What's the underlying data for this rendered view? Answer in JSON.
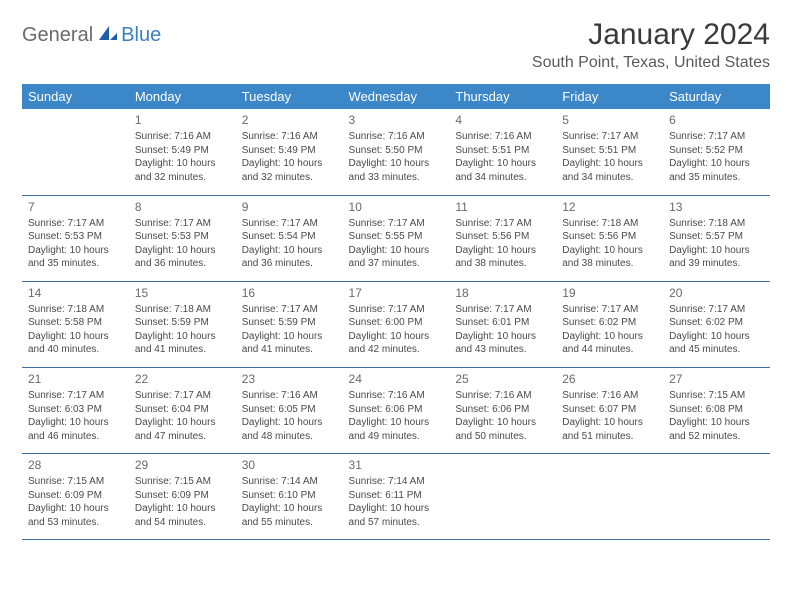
{
  "logo": {
    "text_main": "General",
    "text_accent": "Blue"
  },
  "title": {
    "month": "January 2024",
    "location": "South Point, Texas, United States"
  },
  "colors": {
    "header_bg": "#3b87c8",
    "header_text": "#ffffff",
    "row_border": "#3b6fa0",
    "body_text": "#4a4a4a",
    "daynum_text": "#6a6a6a",
    "logo_gray": "#6b6b6b",
    "logo_blue": "#3b7fc4",
    "title_color": "#3a3a3a",
    "location_color": "#5a5a5a",
    "page_bg": "#ffffff"
  },
  "weekdays": [
    "Sunday",
    "Monday",
    "Tuesday",
    "Wednesday",
    "Thursday",
    "Friday",
    "Saturday"
  ],
  "weeks": [
    [
      null,
      {
        "d": "1",
        "sunrise": "7:16 AM",
        "sunset": "5:49 PM",
        "daylight": "10 hours and 32 minutes."
      },
      {
        "d": "2",
        "sunrise": "7:16 AM",
        "sunset": "5:49 PM",
        "daylight": "10 hours and 32 minutes."
      },
      {
        "d": "3",
        "sunrise": "7:16 AM",
        "sunset": "5:50 PM",
        "daylight": "10 hours and 33 minutes."
      },
      {
        "d": "4",
        "sunrise": "7:16 AM",
        "sunset": "5:51 PM",
        "daylight": "10 hours and 34 minutes."
      },
      {
        "d": "5",
        "sunrise": "7:17 AM",
        "sunset": "5:51 PM",
        "daylight": "10 hours and 34 minutes."
      },
      {
        "d": "6",
        "sunrise": "7:17 AM",
        "sunset": "5:52 PM",
        "daylight": "10 hours and 35 minutes."
      }
    ],
    [
      {
        "d": "7",
        "sunrise": "7:17 AM",
        "sunset": "5:53 PM",
        "daylight": "10 hours and 35 minutes."
      },
      {
        "d": "8",
        "sunrise": "7:17 AM",
        "sunset": "5:53 PM",
        "daylight": "10 hours and 36 minutes."
      },
      {
        "d": "9",
        "sunrise": "7:17 AM",
        "sunset": "5:54 PM",
        "daylight": "10 hours and 36 minutes."
      },
      {
        "d": "10",
        "sunrise": "7:17 AM",
        "sunset": "5:55 PM",
        "daylight": "10 hours and 37 minutes."
      },
      {
        "d": "11",
        "sunrise": "7:17 AM",
        "sunset": "5:56 PM",
        "daylight": "10 hours and 38 minutes."
      },
      {
        "d": "12",
        "sunrise": "7:18 AM",
        "sunset": "5:56 PM",
        "daylight": "10 hours and 38 minutes."
      },
      {
        "d": "13",
        "sunrise": "7:18 AM",
        "sunset": "5:57 PM",
        "daylight": "10 hours and 39 minutes."
      }
    ],
    [
      {
        "d": "14",
        "sunrise": "7:18 AM",
        "sunset": "5:58 PM",
        "daylight": "10 hours and 40 minutes."
      },
      {
        "d": "15",
        "sunrise": "7:18 AM",
        "sunset": "5:59 PM",
        "daylight": "10 hours and 41 minutes."
      },
      {
        "d": "16",
        "sunrise": "7:17 AM",
        "sunset": "5:59 PM",
        "daylight": "10 hours and 41 minutes."
      },
      {
        "d": "17",
        "sunrise": "7:17 AM",
        "sunset": "6:00 PM",
        "daylight": "10 hours and 42 minutes."
      },
      {
        "d": "18",
        "sunrise": "7:17 AM",
        "sunset": "6:01 PM",
        "daylight": "10 hours and 43 minutes."
      },
      {
        "d": "19",
        "sunrise": "7:17 AM",
        "sunset": "6:02 PM",
        "daylight": "10 hours and 44 minutes."
      },
      {
        "d": "20",
        "sunrise": "7:17 AM",
        "sunset": "6:02 PM",
        "daylight": "10 hours and 45 minutes."
      }
    ],
    [
      {
        "d": "21",
        "sunrise": "7:17 AM",
        "sunset": "6:03 PM",
        "daylight": "10 hours and 46 minutes."
      },
      {
        "d": "22",
        "sunrise": "7:17 AM",
        "sunset": "6:04 PM",
        "daylight": "10 hours and 47 minutes."
      },
      {
        "d": "23",
        "sunrise": "7:16 AM",
        "sunset": "6:05 PM",
        "daylight": "10 hours and 48 minutes."
      },
      {
        "d": "24",
        "sunrise": "7:16 AM",
        "sunset": "6:06 PM",
        "daylight": "10 hours and 49 minutes."
      },
      {
        "d": "25",
        "sunrise": "7:16 AM",
        "sunset": "6:06 PM",
        "daylight": "10 hours and 50 minutes."
      },
      {
        "d": "26",
        "sunrise": "7:16 AM",
        "sunset": "6:07 PM",
        "daylight": "10 hours and 51 minutes."
      },
      {
        "d": "27",
        "sunrise": "7:15 AM",
        "sunset": "6:08 PM",
        "daylight": "10 hours and 52 minutes."
      }
    ],
    [
      {
        "d": "28",
        "sunrise": "7:15 AM",
        "sunset": "6:09 PM",
        "daylight": "10 hours and 53 minutes."
      },
      {
        "d": "29",
        "sunrise": "7:15 AM",
        "sunset": "6:09 PM",
        "daylight": "10 hours and 54 minutes."
      },
      {
        "d": "30",
        "sunrise": "7:14 AM",
        "sunset": "6:10 PM",
        "daylight": "10 hours and 55 minutes."
      },
      {
        "d": "31",
        "sunrise": "7:14 AM",
        "sunset": "6:11 PM",
        "daylight": "10 hours and 57 minutes."
      },
      null,
      null,
      null
    ]
  ],
  "labels": {
    "sunrise": "Sunrise:",
    "sunset": "Sunset:",
    "daylight": "Daylight:"
  }
}
